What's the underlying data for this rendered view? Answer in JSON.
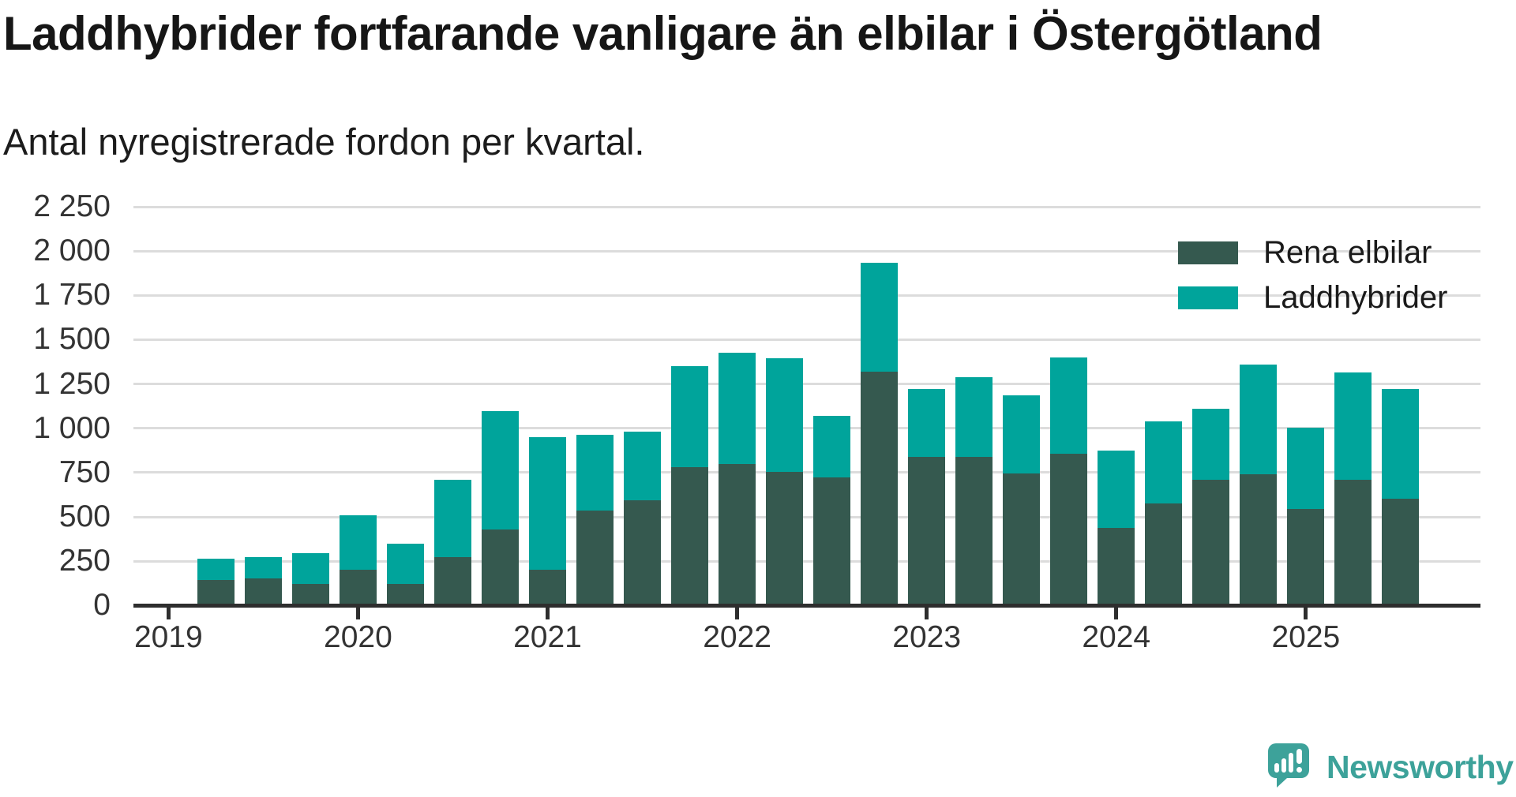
{
  "header": {
    "title": "Laddhybrider fortfarande vanligare än elbilar i Östergötland",
    "subtitle": "Antal nyregistrerade fordon per kvartal."
  },
  "legend": {
    "items": [
      {
        "label": "Rena elbilar",
        "color": "#35594f"
      },
      {
        "label": "Laddhybrider",
        "color": "#00a49b"
      }
    ]
  },
  "axes": {
    "y_ticks": [
      "0",
      "250",
      "500",
      "750",
      "1 000",
      "1 250",
      "1 500",
      "1 750",
      "2 000",
      "2 250"
    ],
    "x_ticks": [
      "2019",
      "2020",
      "2021",
      "2022",
      "2023",
      "2024",
      "2025"
    ]
  },
  "chart_data": {
    "type": "bar",
    "stacked": true,
    "title": "Laddhybrider fortfarande vanligare än elbilar i Östergötland",
    "subtitle": "Antal nyregistrerade fordon per kvartal.",
    "ylim": [
      0,
      2250
    ],
    "grid": true,
    "legend_position": "top-right",
    "first_quarter_offset": 1,
    "categories": [
      "2019 Q2",
      "2019 Q3",
      "2019 Q4",
      "2020 Q1",
      "2020 Q2",
      "2020 Q3",
      "2020 Q4",
      "2021 Q1",
      "2021 Q2",
      "2021 Q3",
      "2021 Q4",
      "2022 Q1",
      "2022 Q2",
      "2022 Q3",
      "2022 Q4",
      "2023 Q1",
      "2023 Q2",
      "2023 Q3",
      "2023 Q4",
      "2024 Q1",
      "2024 Q2",
      "2024 Q3",
      "2024 Q4",
      "2025 Q1",
      "2025 Q2",
      "2025 Q3"
    ],
    "series": [
      {
        "name": "Rena elbilar",
        "color": "#35594f",
        "values": [
          145,
          155,
          120,
          200,
          120,
          275,
          430,
          200,
          535,
          595,
          780,
          800,
          755,
          725,
          1320,
          840,
          840,
          745,
          855,
          440,
          575,
          710,
          740,
          545,
          710,
          605
        ]
      },
      {
        "name": "Laddhybrider",
        "color": "#00a49b",
        "values": [
          120,
          120,
          175,
          310,
          230,
          435,
          665,
          750,
          430,
          385,
          570,
          625,
          640,
          345,
          615,
          380,
          450,
          440,
          545,
          435,
          465,
          400,
          620,
          460,
          605,
          615
        ]
      }
    ]
  },
  "footer": {
    "brand": "Newsworthy",
    "brand_color": "#3da29a"
  }
}
